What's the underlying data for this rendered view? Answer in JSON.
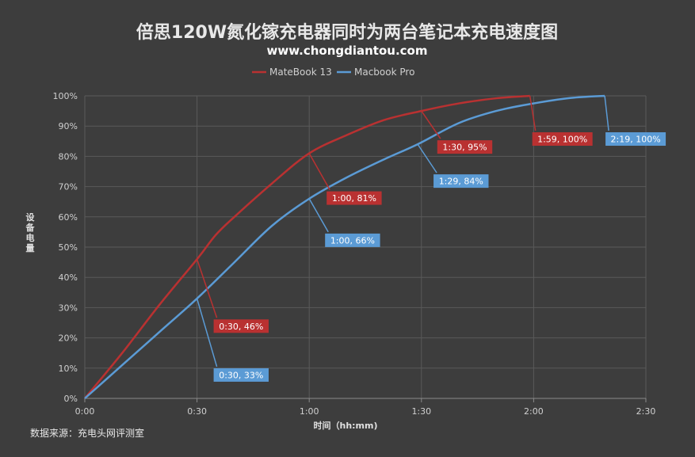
{
  "chart_data": {
    "type": "line",
    "title": "倍思120W氮化镓充电器同时为两台笔记本充电速度图",
    "subtitle": "www.chongdiantou.com",
    "xlabel": "时间（hh:mm)",
    "ylabel": "设备电量",
    "source": "数据来源：充电头网评测室",
    "xlim": [
      0,
      150
    ],
    "ylim": [
      0,
      100
    ],
    "x_ticks": [
      {
        "value": 0,
        "label": "0:00"
      },
      {
        "value": 30,
        "label": "0:30"
      },
      {
        "value": 60,
        "label": "1:00"
      },
      {
        "value": 90,
        "label": "1:30"
      },
      {
        "value": 120,
        "label": "2:00"
      },
      {
        "value": 150,
        "label": "2:30"
      }
    ],
    "y_ticks": [
      {
        "value": 0,
        "label": "0%"
      },
      {
        "value": 10,
        "label": "10%"
      },
      {
        "value": 20,
        "label": "20%"
      },
      {
        "value": 30,
        "label": "30%"
      },
      {
        "value": 40,
        "label": "40%"
      },
      {
        "value": 50,
        "label": "50%"
      },
      {
        "value": 60,
        "label": "60%"
      },
      {
        "value": 70,
        "label": "70%"
      },
      {
        "value": 80,
        "label": "80%"
      },
      {
        "value": 90,
        "label": "90%"
      },
      {
        "value": 100,
        "label": "100%"
      }
    ],
    "grid": true,
    "legend_position": "top",
    "series": [
      {
        "name": "MateBook 13",
        "color": "#b93131",
        "x": [
          0,
          10,
          20,
          30,
          35,
          40,
          50,
          60,
          70,
          80,
          90,
          100,
          110,
          119
        ],
        "y": [
          0,
          15,
          31,
          46,
          54,
          60,
          71,
          81,
          87,
          92,
          95,
          97.5,
          99.2,
          100
        ],
        "annotations": [
          {
            "x": 30,
            "y": 46,
            "label": "0:30, 46%"
          },
          {
            "x": 60,
            "y": 81,
            "label": "1:00, 81%"
          },
          {
            "x": 90,
            "y": 95,
            "label": "1:30, 95%"
          },
          {
            "x": 119,
            "y": 100,
            "label": "1:59, 100%"
          }
        ]
      },
      {
        "name": "Macbook Pro",
        "color": "#5b9bd5",
        "x": [
          0,
          10,
          20,
          30,
          40,
          50,
          60,
          70,
          80,
          89,
          100,
          110,
          120,
          130,
          139
        ],
        "y": [
          0,
          11,
          22,
          33,
          45,
          57,
          66,
          73,
          79,
          84,
          91,
          95,
          97.5,
          99.3,
          100
        ],
        "annotations": [
          {
            "x": 30,
            "y": 33,
            "label": "0:30, 33%"
          },
          {
            "x": 60,
            "y": 66,
            "label": "1:00, 66%"
          },
          {
            "x": 89,
            "y": 84,
            "label": "1:29, 84%"
          },
          {
            "x": 139,
            "y": 100,
            "label": "2:19, 100%"
          }
        ]
      }
    ]
  }
}
